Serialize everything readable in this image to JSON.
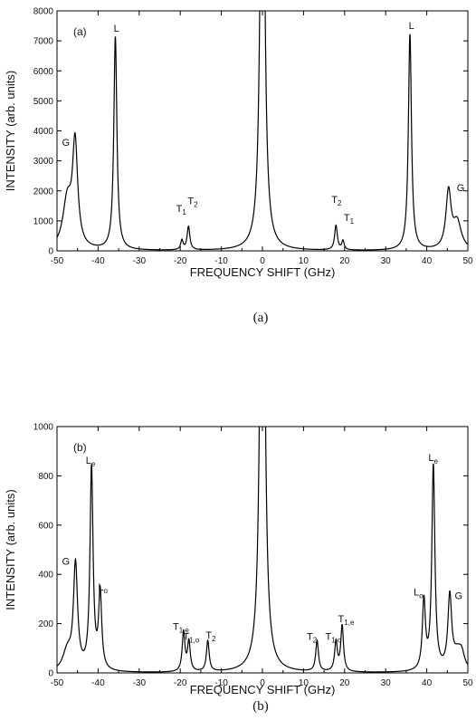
{
  "chart_data": [
    {
      "type": "line",
      "panel_label": "(a)",
      "caption": "(a)",
      "xlabel": "FREQUENCY SHIFT (GHz)",
      "ylabel": "INTENSITY (arb. units)",
      "xlim": [
        -50,
        50
      ],
      "ylim": [
        0,
        8000
      ],
      "xticks": [
        -50,
        -40,
        -30,
        -20,
        -10,
        0,
        10,
        20,
        30,
        40,
        50
      ],
      "yticks": [
        0,
        1000,
        2000,
        3000,
        4000,
        5000,
        6000,
        7000,
        8000
      ],
      "color": "#000000",
      "peaks": [
        {
          "center": -47.5,
          "height": 1600,
          "width": 1.3
        },
        {
          "center": -45.6,
          "height": 3400,
          "width": 0.75
        },
        {
          "center": -35.8,
          "height": 7100,
          "width": 0.45
        },
        {
          "center": -19.6,
          "height": 320,
          "width": 0.35
        },
        {
          "center": -18.0,
          "height": 780,
          "width": 0.4
        },
        {
          "center": 0.0,
          "height": 20000,
          "width": 0.55
        },
        {
          "center": 17.9,
          "height": 820,
          "width": 0.4
        },
        {
          "center": 19.6,
          "height": 300,
          "width": 0.35
        },
        {
          "center": 35.9,
          "height": 7200,
          "width": 0.45
        },
        {
          "center": 45.3,
          "height": 1900,
          "width": 0.75
        },
        {
          "center": 47.4,
          "height": 900,
          "width": 1.2
        }
      ],
      "annotations": [
        {
          "text": "L",
          "sub": "",
          "x": -36.2,
          "y": 7300
        },
        {
          "text": "G",
          "sub": "",
          "x": -48.8,
          "y": 3500
        },
        {
          "text": "T",
          "sub": "1",
          "x": -21.0,
          "y": 1300
        },
        {
          "text": "T",
          "sub": "2",
          "x": -18.2,
          "y": 1550
        },
        {
          "text": "T",
          "sub": "2",
          "x": 16.8,
          "y": 1600
        },
        {
          "text": "T",
          "sub": "1",
          "x": 19.8,
          "y": 1000
        },
        {
          "text": "L",
          "sub": "",
          "x": 35.6,
          "y": 7400
        },
        {
          "text": "G",
          "sub": "",
          "x": 47.3,
          "y": 2000
        }
      ]
    },
    {
      "type": "line",
      "panel_label": "(b)",
      "caption": "(b)",
      "xlabel": "FREQUENCY SHIFT (GHz)",
      "ylabel": "INTENSITY (arb. units)",
      "xlim": [
        -50,
        50
      ],
      "ylim": [
        0,
        1000
      ],
      "xticks": [
        -50,
        -40,
        -30,
        -20,
        -10,
        0,
        10,
        20,
        30,
        40,
        50
      ],
      "yticks": [
        0,
        200,
        400,
        600,
        800,
        1000
      ],
      "color": "#000000",
      "peaks": [
        {
          "center": -47.5,
          "height": 80,
          "width": 1.3
        },
        {
          "center": -45.5,
          "height": 425,
          "width": 0.6
        },
        {
          "center": -41.6,
          "height": 820,
          "width": 0.45
        },
        {
          "center": -39.5,
          "height": 310,
          "width": 0.45
        },
        {
          "center": -19.2,
          "height": 160,
          "width": 0.4
        },
        {
          "center": -17.9,
          "height": 120,
          "width": 0.4
        },
        {
          "center": -13.3,
          "height": 125,
          "width": 0.4
        },
        {
          "center": 0.0,
          "height": 3000,
          "width": 0.55
        },
        {
          "center": 13.3,
          "height": 125,
          "width": 0.4
        },
        {
          "center": 17.9,
          "height": 120,
          "width": 0.4
        },
        {
          "center": 19.4,
          "height": 185,
          "width": 0.4
        },
        {
          "center": 39.3,
          "height": 280,
          "width": 0.45
        },
        {
          "center": 41.6,
          "height": 830,
          "width": 0.45
        },
        {
          "center": 45.6,
          "height": 295,
          "width": 0.55
        },
        {
          "center": 47.5,
          "height": 70,
          "width": 1.3
        },
        {
          "center": 48.5,
          "height": 50,
          "width": 0.8
        }
      ],
      "annotations": [
        {
          "text": "G",
          "sub": "",
          "x": -48.8,
          "y": 440
        },
        {
          "text": "L",
          "sub": "e",
          "x": -43.0,
          "y": 850
        },
        {
          "text": "L",
          "sub": "o",
          "x": -40.0,
          "y": 335
        },
        {
          "text": "T",
          "sub": "1,e",
          "x": -21.8,
          "y": 175
        },
        {
          "text": "T",
          "sub": "1,o",
          "x": -19.3,
          "y": 135
        },
        {
          "text": "T",
          "sub": "2",
          "x": -13.8,
          "y": 140
        },
        {
          "text": "T",
          "sub": "2",
          "x": 10.8,
          "y": 135
        },
        {
          "text": "T",
          "sub": "1,o",
          "x": 15.3,
          "y": 135
        },
        {
          "text": "T",
          "sub": "1,e",
          "x": 18.4,
          "y": 205
        },
        {
          "text": "L",
          "sub": "o",
          "x": 36.8,
          "y": 315
        },
        {
          "text": "L",
          "sub": "e",
          "x": 40.4,
          "y": 860
        },
        {
          "text": "G",
          "sub": "",
          "x": 46.8,
          "y": 300
        }
      ]
    }
  ]
}
